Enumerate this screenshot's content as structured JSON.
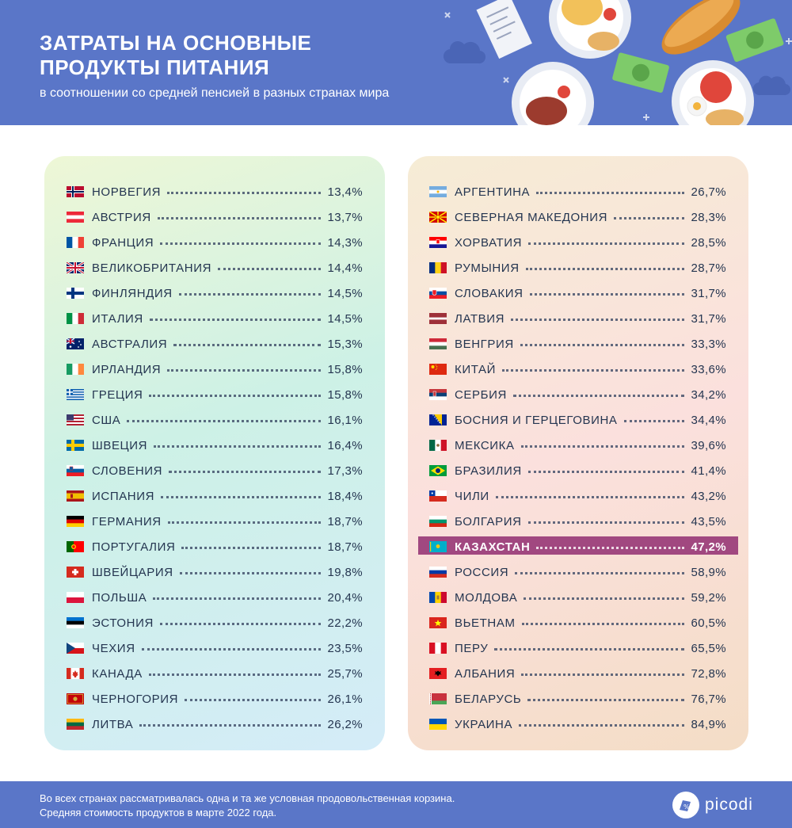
{
  "header": {
    "title_line1": "ЗАТРАТЫ НА ОСНОВНЫЕ",
    "title_line2": "ПРОДУКТЫ ПИТАНИЯ",
    "subtitle": "в соотношении со средней пенсией в разных странах мира"
  },
  "footer": {
    "line1": "Во всех странах рассматривалась одна и та же условная продовольственная корзина.",
    "line2": "Средняя стоимость продуктов в марте 2022 года.",
    "brand": "picodi"
  },
  "colors": {
    "header_bg": "#5a76c8",
    "highlight": "#a14880",
    "text": "#243550"
  },
  "chart_data": {
    "type": "table",
    "highlight": "КАЗАХСТАН",
    "columns": [
      {
        "rows": [
          {
            "country": "НОРВЕГИЯ",
            "value": "13,4%",
            "flag": "norway"
          },
          {
            "country": "АВСТРИЯ",
            "value": "13,7%",
            "flag": "austria"
          },
          {
            "country": "ФРАНЦИЯ",
            "value": "14,3%",
            "flag": "france"
          },
          {
            "country": "ВЕЛИКОБРИТАНИЯ",
            "value": "14,4%",
            "flag": "uk"
          },
          {
            "country": "ФИНЛЯНДИЯ",
            "value": "14,5%",
            "flag": "finland"
          },
          {
            "country": "ИТАЛИЯ",
            "value": "14,5%",
            "flag": "italy"
          },
          {
            "country": "АВСТРАЛИЯ",
            "value": "15,3%",
            "flag": "australia"
          },
          {
            "country": "ИРЛАНДИЯ",
            "value": "15,8%",
            "flag": "ireland"
          },
          {
            "country": "ГРЕЦИЯ",
            "value": "15,8%",
            "flag": "greece"
          },
          {
            "country": "США",
            "value": "16,1%",
            "flag": "usa"
          },
          {
            "country": "ШВЕЦИЯ",
            "value": "16,4%",
            "flag": "sweden"
          },
          {
            "country": "СЛОВЕНИЯ",
            "value": "17,3%",
            "flag": "slovenia"
          },
          {
            "country": "ИСПАНИЯ",
            "value": "18,4%",
            "flag": "spain"
          },
          {
            "country": "ГЕРМАНИЯ",
            "value": "18,7%",
            "flag": "germany"
          },
          {
            "country": "ПОРТУГАЛИЯ",
            "value": "18,7%",
            "flag": "portugal"
          },
          {
            "country": "ШВЕЙЦАРИЯ",
            "value": "19,8%",
            "flag": "switzerland"
          },
          {
            "country": "ПОЛЬША",
            "value": "20,4%",
            "flag": "poland"
          },
          {
            "country": "ЭСТОНИЯ",
            "value": "22,2%",
            "flag": "estonia"
          },
          {
            "country": "ЧЕХИЯ",
            "value": "23,5%",
            "flag": "czechia"
          },
          {
            "country": "КАНАДА",
            "value": "25,7%",
            "flag": "canada"
          },
          {
            "country": "ЧЕРНОГОРИЯ",
            "value": "26,1%",
            "flag": "montenegro"
          },
          {
            "country": "ЛИТВА",
            "value": "26,2%",
            "flag": "lithuania"
          }
        ]
      },
      {
        "rows": [
          {
            "country": "АРГЕНТИНА",
            "value": "26,7%",
            "flag": "argentina"
          },
          {
            "country": "СЕВЕРНАЯ МАКЕДОНИЯ",
            "value": "28,3%",
            "flag": "north-macedonia"
          },
          {
            "country": "ХОРВАТИЯ",
            "value": "28,5%",
            "flag": "croatia"
          },
          {
            "country": "РУМЫНИЯ",
            "value": "28,7%",
            "flag": "romania"
          },
          {
            "country": "СЛОВАКИЯ",
            "value": "31,7%",
            "flag": "slovakia"
          },
          {
            "country": "ЛАТВИЯ",
            "value": "31,7%",
            "flag": "latvia"
          },
          {
            "country": "ВЕНГРИЯ",
            "value": "33,3%",
            "flag": "hungary"
          },
          {
            "country": "КИТАЙ",
            "value": "33,6%",
            "flag": "china"
          },
          {
            "country": "СЕРБИЯ",
            "value": "34,2%",
            "flag": "serbia"
          },
          {
            "country": "БОСНИЯ И ГЕРЦЕГОВИНА",
            "value": "34,4%",
            "flag": "bosnia"
          },
          {
            "country": "МЕКСИКА",
            "value": "39,6%",
            "flag": "mexico"
          },
          {
            "country": "БРАЗИЛИЯ",
            "value": "41,4%",
            "flag": "brazil"
          },
          {
            "country": "ЧИЛИ",
            "value": "43,2%",
            "flag": "chile"
          },
          {
            "country": "БОЛГАРИЯ",
            "value": "43,5%",
            "flag": "bulgaria"
          },
          {
            "country": "КАЗАХСТАН",
            "value": "47,2%",
            "flag": "kazakhstan"
          },
          {
            "country": "РОССИЯ",
            "value": "58,9%",
            "flag": "russia"
          },
          {
            "country": "МОЛДОВА",
            "value": "59,2%",
            "flag": "moldova"
          },
          {
            "country": "ВЬЕТНАМ",
            "value": "60,5%",
            "flag": "vietnam"
          },
          {
            "country": "ПЕРУ",
            "value": "65,5%",
            "flag": "peru"
          },
          {
            "country": "АЛБАНИЯ",
            "value": "72,8%",
            "flag": "albania"
          },
          {
            "country": "БЕЛАРУСЬ",
            "value": "76,7%",
            "flag": "belarus"
          },
          {
            "country": "УКРАИНА",
            "value": "84,9%",
            "flag": "ukraine"
          }
        ]
      }
    ]
  }
}
